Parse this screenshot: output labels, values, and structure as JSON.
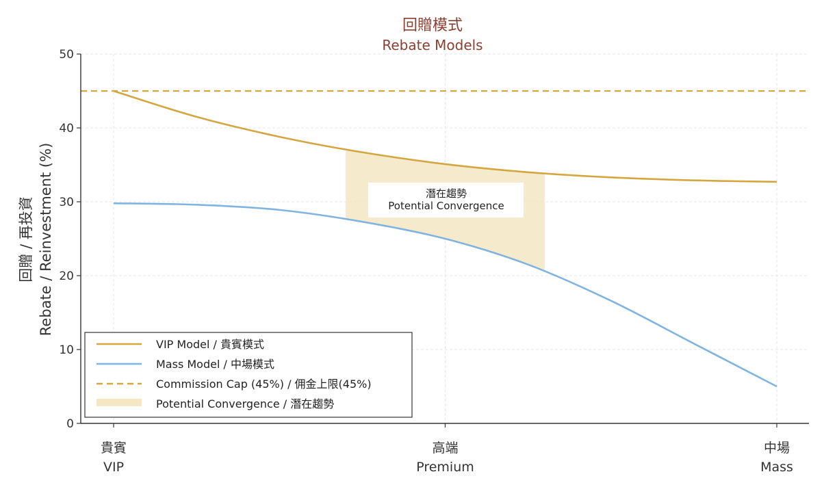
{
  "chart_data": {
    "type": "line",
    "title": "回贈模式",
    "subtitle": "Rebate Models",
    "ylabel_cn": "回贈 / 再投資",
    "ylabel_en": "Rebate / Reinvestment (%)",
    "ylim": [
      0,
      50
    ],
    "yticks": [
      0,
      10,
      20,
      30,
      40,
      50
    ],
    "grid": true,
    "x_categories": [
      {
        "cn": "貴賓",
        "en": "VIP"
      },
      {
        "cn": "高端",
        "en": "Premium"
      },
      {
        "cn": "中場",
        "en": "Mass"
      }
    ],
    "xlim": [
      0,
      2
    ],
    "series": [
      {
        "name": "VIP Model / 貴賓模式",
        "color": "#d4a640",
        "style": "solid",
        "x": [
          0,
          0.25,
          0.5,
          0.75,
          1.0,
          1.25,
          1.5,
          1.75,
          2.0
        ],
        "y": [
          45,
          41.5,
          38.8,
          36.7,
          35.1,
          34.0,
          33.3,
          32.9,
          32.7
        ]
      },
      {
        "name": "Mass Model / 中場模式",
        "color": "#80b4e0",
        "style": "solid",
        "x": [
          0,
          0.25,
          0.5,
          0.75,
          1.0,
          1.25,
          1.5,
          1.75,
          2.0
        ],
        "y": [
          29.8,
          29.6,
          28.9,
          27.3,
          25.0,
          21.5,
          16.6,
          10.8,
          5.0
        ]
      },
      {
        "name": "Commission Cap (45%) / 佣金上限(45%)",
        "color": "#d4a640",
        "style": "dashed",
        "y_const": 45
      }
    ],
    "band": {
      "name": "Potential Convergence / 潛在趨勢",
      "color": "#f5e6c4",
      "x_start": 0.7,
      "x_end": 1.3
    },
    "annotation": {
      "line1": "潛在趨勢",
      "line2": "Potential Convergence"
    },
    "legend_position": "lower-left"
  }
}
